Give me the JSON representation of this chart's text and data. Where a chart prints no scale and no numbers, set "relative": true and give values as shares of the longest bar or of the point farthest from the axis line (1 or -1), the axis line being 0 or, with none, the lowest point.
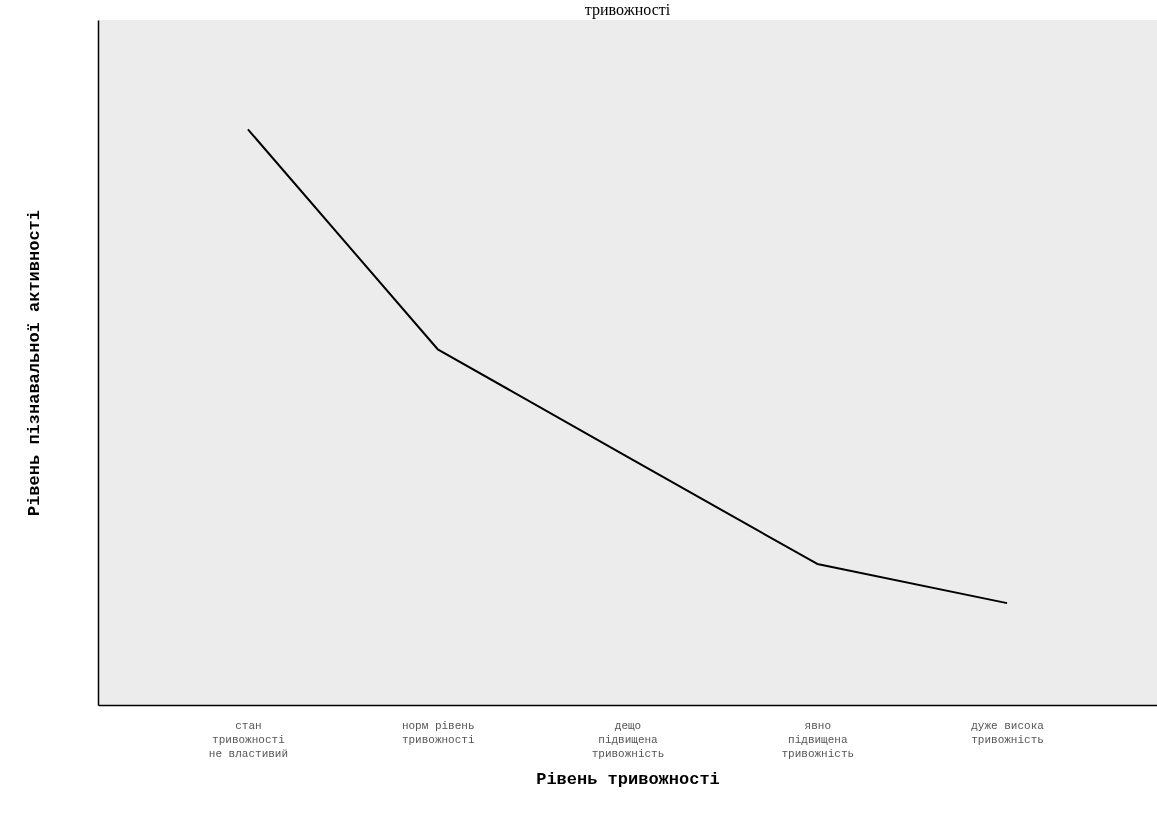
{
  "chart_data": {
    "type": "line",
    "title": "тривожності",
    "xlabel": "Рівень тривожності",
    "ylabel": "Рівень пізнавальної активності",
    "categories": [
      "стан\nтривожності\nне властивий",
      "норм рівень\nтривожності",
      "дещо\nпідвищена\nтривожність",
      "явно\nпідвищена\nтривожність",
      "дуже висока\nтривожність"
    ],
    "values": [
      1,
      0.618,
      0.431,
      0.245,
      0.177
    ],
    "color": "#000000",
    "relative": true,
    "grid": false,
    "marker": "none",
    "line_style": "solid"
  }
}
